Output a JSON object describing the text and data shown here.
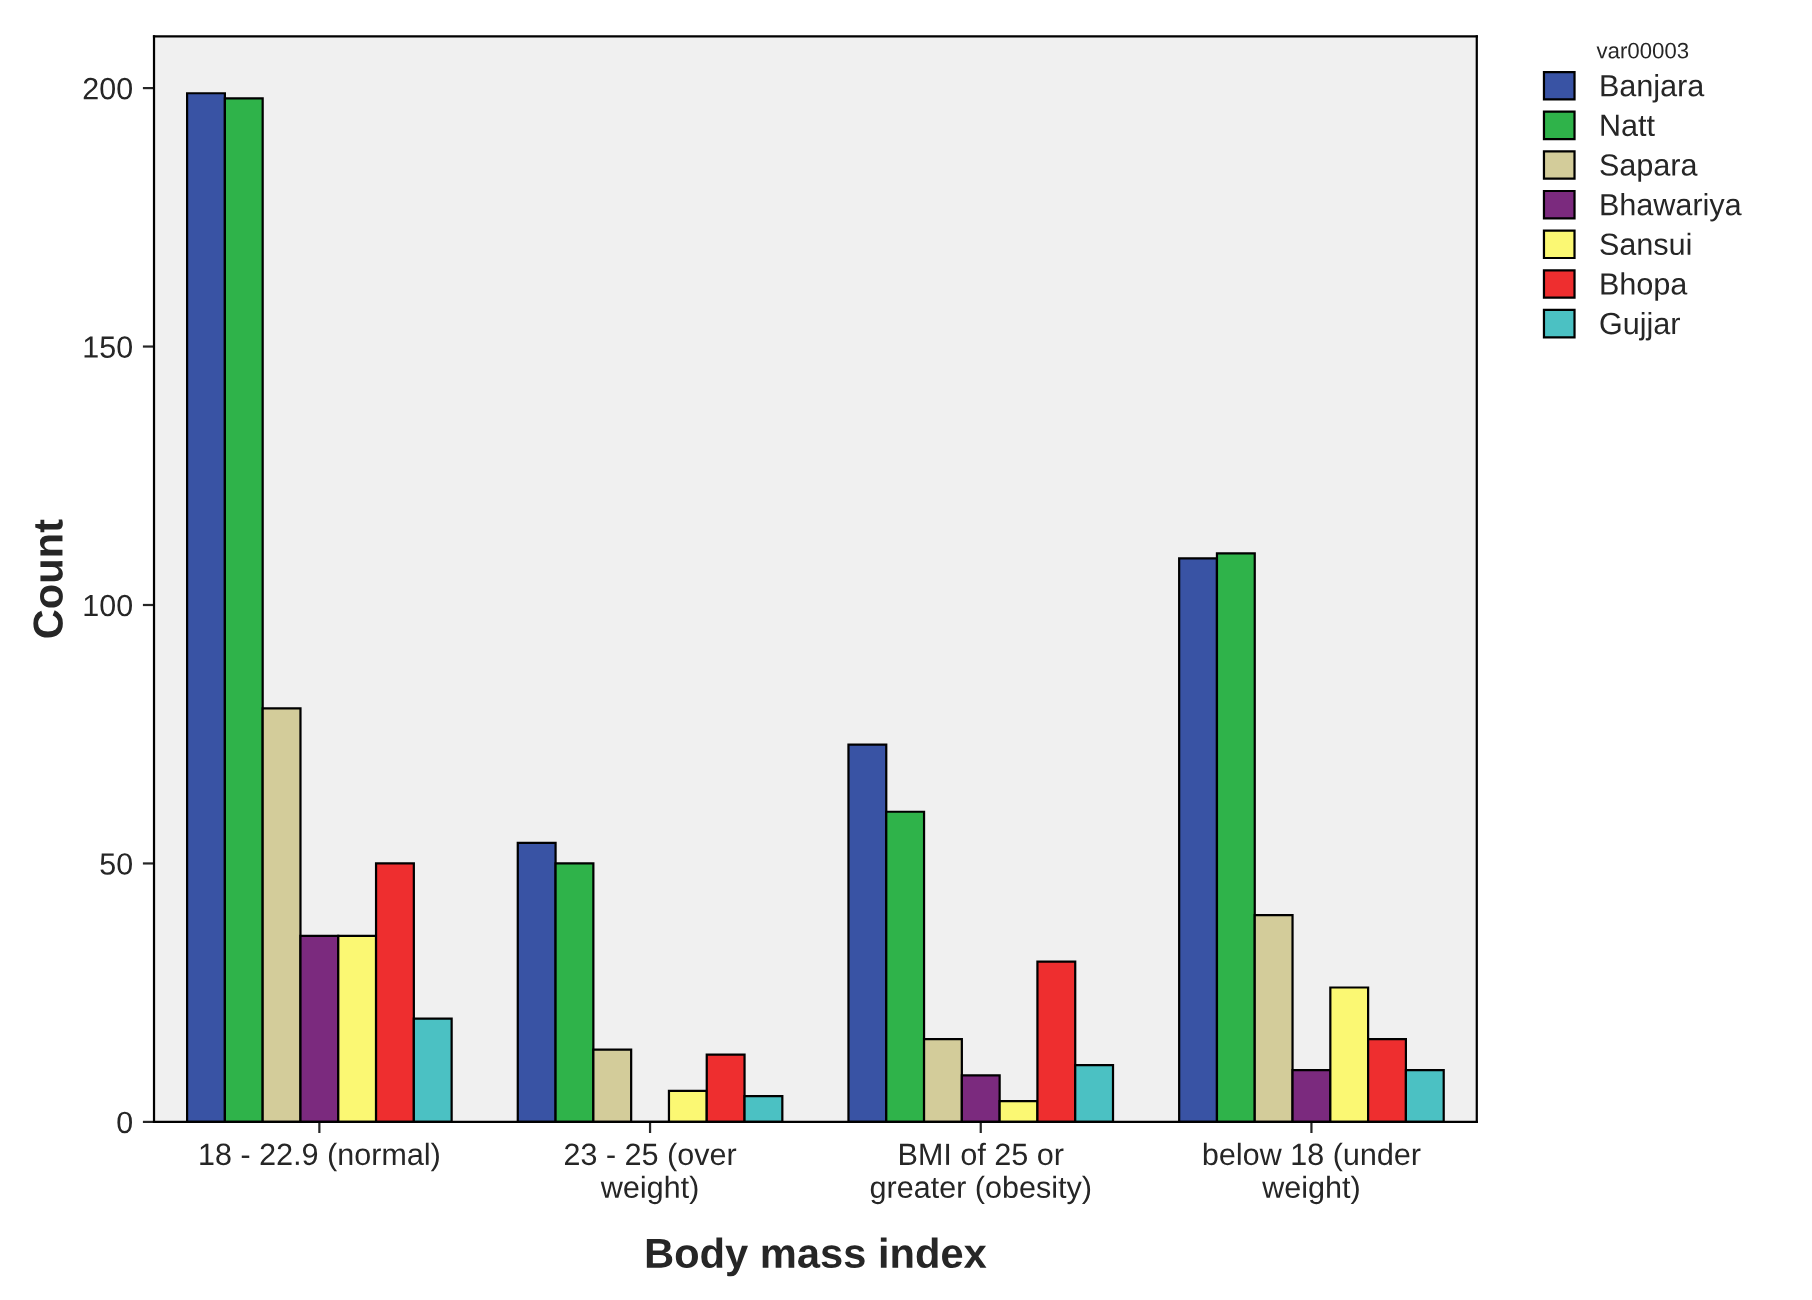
{
  "chart_data": {
    "type": "bar",
    "xlabel": "Body mass index",
    "ylabel": "Count",
    "legend_title": "var00003",
    "categories": [
      "18 - 22.9 (normal)",
      "23 - 25 (over\nweight)",
      "BMI of 25 or\ngreater (obesity)",
      "below 18 (under\nweight)"
    ],
    "series": [
      {
        "name": "Banjara",
        "color": "#3953a4",
        "values": [
          199,
          54,
          73,
          109
        ]
      },
      {
        "name": "Natt",
        "color": "#2fb34a",
        "values": [
          198,
          50,
          60,
          110
        ]
      },
      {
        "name": "Sapara",
        "color": "#d3cc9a",
        "values": [
          80,
          14,
          16,
          40
        ]
      },
      {
        "name": "Bhawariya",
        "color": "#7b2a7e",
        "values": [
          36,
          0,
          9,
          10
        ]
      },
      {
        "name": "Sansui",
        "color": "#fbf873",
        "values": [
          36,
          6,
          4,
          26
        ]
      },
      {
        "name": "Bhopa",
        "color": "#ee2e2f",
        "values": [
          50,
          13,
          31,
          16
        ]
      },
      {
        "name": "Gujjar",
        "color": "#4bc1c3",
        "values": [
          20,
          5,
          11,
          10
        ]
      }
    ],
    "ylim": [
      0,
      210
    ],
    "yticks": [
      0,
      50,
      100,
      150,
      200
    ],
    "grid": false,
    "legend": "top right"
  }
}
